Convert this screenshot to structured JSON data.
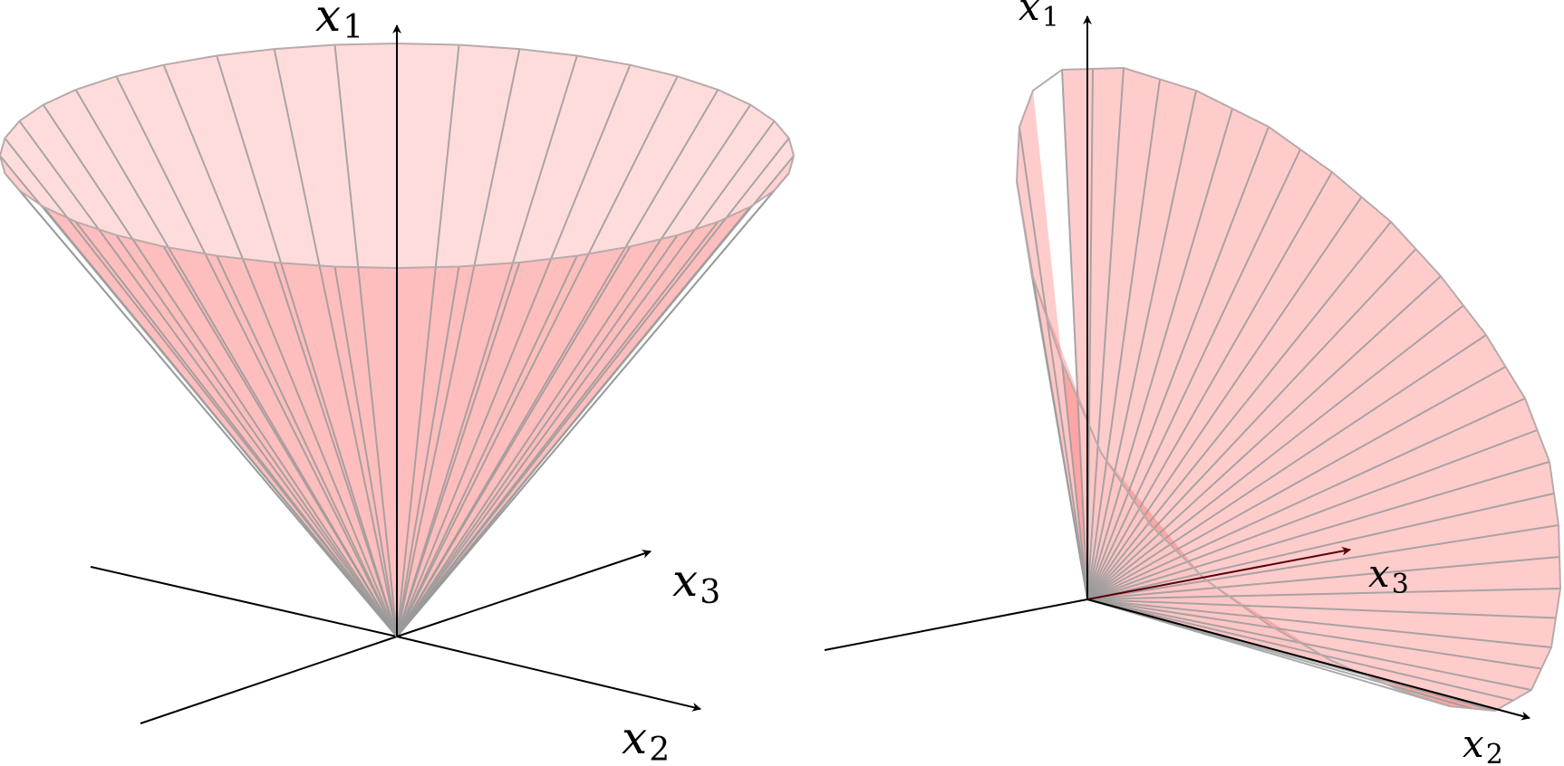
{
  "figure": {
    "left_panel": {
      "axes": {
        "x1": {
          "base": "x",
          "sub": "1"
        },
        "x2": {
          "base": "x",
          "sub": "2"
        },
        "x3": {
          "base": "x",
          "sub": "3"
        }
      }
    },
    "right_panel": {
      "axes": {
        "x1": {
          "base": "x",
          "sub": "1"
        },
        "x2": {
          "base": "x",
          "sub": "2"
        },
        "x3": {
          "base": "x",
          "sub": "3"
        }
      }
    }
  },
  "colors": {
    "cone_fill": "#ff9a9a",
    "cone_fill_inner": "#ff5c5c",
    "generator_line": "#9a9a9a",
    "axis": "#000000",
    "x3_axis_right": "#5a0008"
  },
  "generators_per_cone": 40
}
